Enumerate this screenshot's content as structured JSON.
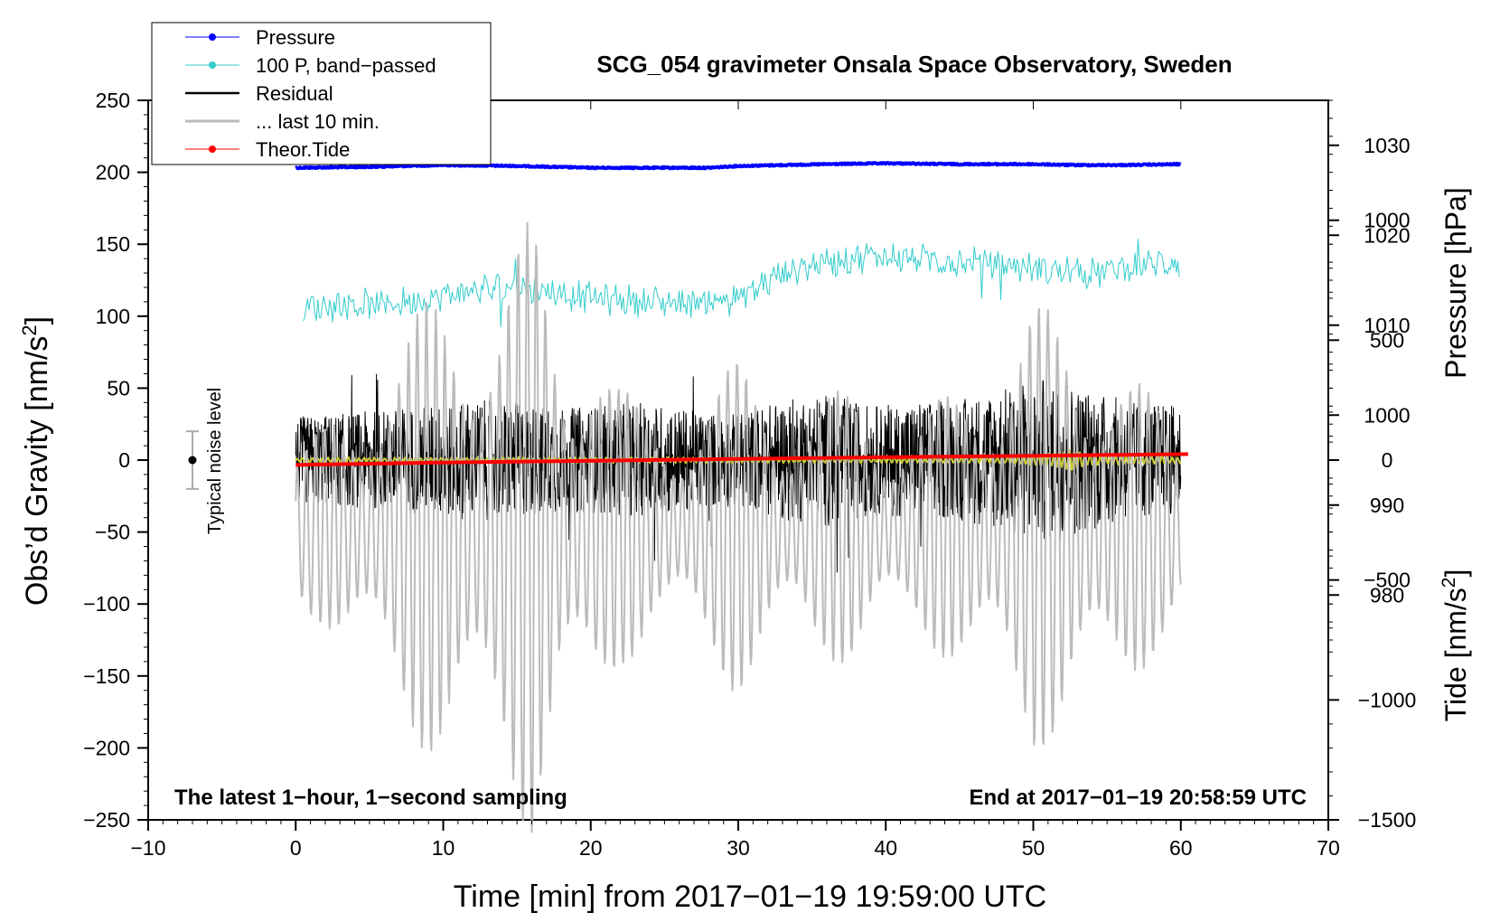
{
  "chart_data": {
    "type": "line",
    "title": "SCG_054 gravimeter Onsala Space Observatory, Sweden",
    "xlabel": "Time [min] from 2017−01−19 19:59:00 UTC",
    "ylabel_left": "Obs’d Gravity [nm/s",
    "ylabel_left_sup": "2",
    "ylabel_left_end": "]",
    "ylabel_right_pressure": "Pressure [hPa]",
    "ylabel_right_tide": "Tide [nm/s",
    "ylabel_right_tide_sup": "2",
    "ylabel_right_tide_end": "]",
    "xlim": [
      -10,
      70
    ],
    "ylim_left": [
      -250,
      250
    ],
    "pressure_lim": [
      955,
      1035
    ],
    "tide_lim": [
      -1500,
      1500
    ],
    "x_ticks": [
      -10,
      0,
      10,
      20,
      30,
      40,
      50,
      60,
      70
    ],
    "x_tick_labels": [
      "−10",
      "0",
      "10",
      "20",
      "30",
      "40",
      "50",
      "60",
      "70"
    ],
    "y_ticks_left": [
      -250,
      -200,
      -150,
      -100,
      -50,
      0,
      50,
      100,
      150,
      200,
      250
    ],
    "y_tick_labels_left": [
      "−250",
      "−200",
      "−150",
      "−100",
      "−50",
      "0",
      "50",
      "100",
      "150",
      "200",
      "250"
    ],
    "pressure_ticks": [
      980,
      990,
      1000,
      1010,
      1020,
      1030
    ],
    "pressure_tick_labels": [
      "980",
      "990",
      "1000",
      "1010",
      "1020",
      "1030"
    ],
    "tide_ticks": [
      -1500,
      -1000,
      -500,
      0,
      500,
      1000
    ],
    "tide_tick_labels": [
      "−1500",
      "−1000",
      "−500",
      "0",
      "500",
      "1000"
    ],
    "annotation_left": "The latest 1−hour, 1−second sampling",
    "annotation_right": "End at 2017−01−19 20:58:59 UTC",
    "noise_label": "Typical noise level",
    "noise_bar": {
      "x": -7,
      "center": 0,
      "half_range": 20
    },
    "legend": [
      {
        "label": "Pressure",
        "color": "#0000ff",
        "marker": true
      },
      {
        "label": "100 P, band−passed",
        "color": "#33cccc",
        "marker": true
      },
      {
        "label": "Residual",
        "color": "#000000",
        "marker": false
      },
      {
        "label": "... last 10 min.",
        "color": "#bbbbbb",
        "marker": false
      },
      {
        "label": "Theor.Tide",
        "color": "#ff0000",
        "marker": true
      }
    ],
    "series": [
      {
        "name": "Pressure",
        "axis": "pressure",
        "color": "#0000ff",
        "x": [
          0,
          5,
          10,
          15,
          20,
          25,
          28,
          30,
          33,
          36,
          40,
          45,
          50,
          53,
          56,
          60
        ],
        "y": [
          1027.5,
          1027.6,
          1027.8,
          1027.7,
          1027.5,
          1027.5,
          1027.5,
          1027.7,
          1027.8,
          1027.9,
          1028.0,
          1027.9,
          1027.9,
          1027.8,
          1027.8,
          1027.9
        ]
      },
      {
        "name": "100 P, band-passed",
        "axis": "left",
        "color": "#33cccc",
        "x": [
          0,
          3,
          6,
          9,
          12,
          15,
          18,
          21,
          24,
          27,
          30,
          33,
          36,
          39,
          42,
          45,
          48,
          51,
          54,
          57,
          60
        ],
        "y": [
          105,
          108,
          108,
          112,
          118,
          120,
          116,
          112,
          110,
          110,
          112,
          130,
          138,
          142,
          140,
          138,
          136,
          132,
          130,
          135,
          138
        ],
        "noise_amp": 9
      },
      {
        "name": "Residual",
        "axis": "left",
        "color": "#000000",
        "x": [
          0,
          3,
          6,
          9,
          12,
          15,
          18,
          21,
          24,
          27,
          30,
          33,
          36,
          39,
          42,
          45,
          48,
          51,
          54,
          57,
          60
        ],
        "envelope": [
          30,
          32,
          35,
          38,
          42,
          40,
          36,
          38,
          40,
          34,
          32,
          42,
          46,
          38,
          40,
          42,
          50,
          58,
          48,
          40,
          38
        ]
      },
      {
        "name": "Residual (filtered)",
        "axis": "left",
        "color": "#cccc33",
        "x": [
          0,
          10,
          20,
          30,
          40,
          48,
          51,
          52.5,
          54,
          60
        ],
        "envelope": [
          1.5,
          1.5,
          1.5,
          1.5,
          1.5,
          2,
          4,
          7,
          3,
          2
        ]
      },
      {
        "name": "... last 10 min.",
        "axis": "tide",
        "color": "#bbbbbb",
        "x": [
          0,
          2,
          4,
          6,
          8,
          10,
          12,
          14,
          16,
          18,
          20,
          22,
          24,
          26,
          28,
          30,
          32,
          34,
          36,
          38,
          40,
          42,
          44,
          46,
          48,
          50,
          52,
          54,
          56,
          58,
          60
        ],
        "envelope": [
          350,
          420,
          550,
          800,
          900,
          1000,
          1100,
          1100,
          1300,
          850,
          1000,
          600,
          450,
          500,
          600,
          700,
          650,
          500,
          550,
          600,
          500,
          450,
          550,
          700,
          800,
          950,
          900,
          850,
          700,
          550,
          450
        ]
      },
      {
        "name": "Theor.Tide",
        "axis": "tide",
        "color": "#ff0000",
        "x": [
          0,
          10,
          20,
          30,
          40,
          50,
          60.5
        ],
        "y": [
          -20,
          -10,
          -3,
          5,
          12,
          18,
          25
        ]
      }
    ]
  }
}
